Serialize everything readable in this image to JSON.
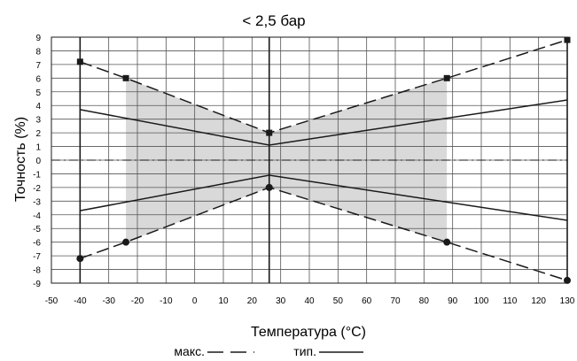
{
  "chart_data": {
    "type": "line",
    "title": "< 2,5 бар",
    "xlabel": "Температура (°C)",
    "ylabel": "Точность (%)",
    "xlim": [
      -50,
      130
    ],
    "ylim": [
      -9,
      9
    ],
    "x_ticks": [
      -50,
      -40,
      -30,
      -20,
      -10,
      0,
      10,
      20,
      30,
      40,
      50,
      60,
      70,
      80,
      90,
      100,
      110,
      120,
      130
    ],
    "y_ticks": [
      9,
      8,
      7,
      6,
      5,
      4,
      3,
      2,
      1,
      0,
      -1,
      -2,
      -3,
      -4,
      -5,
      -6,
      -7,
      -8,
      -9
    ],
    "grid": true,
    "legend_position": "bottom-center",
    "legend": {
      "max": "макс.",
      "typ": "тип."
    },
    "series": [
      {
        "name": "макс.",
        "style": "dashed",
        "markers": "square",
        "points": [
          [
            -40,
            7.2
          ],
          [
            -24,
            6
          ],
          [
            26,
            2
          ],
          [
            88,
            6
          ],
          [
            130,
            8.8
          ]
        ]
      },
      {
        "name": "макс.",
        "style": "dashed",
        "markers": "circle",
        "points": [
          [
            -40,
            -7.2
          ],
          [
            -24,
            -6
          ],
          [
            26,
            -2
          ],
          [
            88,
            -6
          ],
          [
            130,
            -8.8
          ]
        ]
      },
      {
        "name": "тип.",
        "style": "solid",
        "points": [
          [
            -40,
            3.7
          ],
          [
            26,
            1.1
          ],
          [
            130,
            4.4
          ]
        ]
      },
      {
        "name": "тип.",
        "style": "solid",
        "points": [
          [
            -40,
            -3.7
          ],
          [
            26,
            -1.1
          ],
          [
            130,
            -4.4
          ]
        ]
      }
    ],
    "shaded_region": {
      "x": [
        -24,
        26,
        88
      ],
      "upper": [
        6,
        2,
        6
      ],
      "lower": [
        -6,
        -2,
        -6
      ]
    },
    "vertical_lines": [
      -40,
      26,
      130
    ],
    "reference_line_y": 0
  },
  "colors": {
    "line": "#1a1a1a",
    "grid": "#555555",
    "shade": "#d9d9d9"
  }
}
